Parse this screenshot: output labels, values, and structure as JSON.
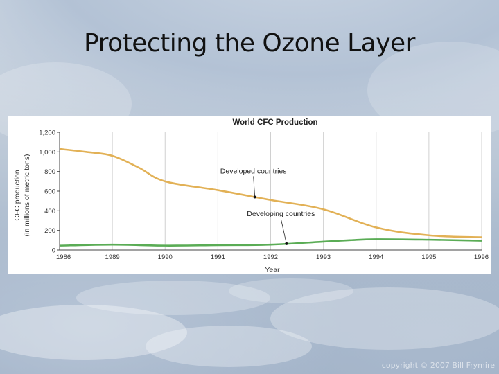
{
  "slide": {
    "title": "Protecting the Ozone Layer",
    "copyright": "copyright © 2007 Bill Frymire"
  },
  "colors": {
    "developed": "#e2b156",
    "developing": "#5aac55",
    "grid": "#d0d0d0",
    "axis": "#444444"
  },
  "chart_data": {
    "type": "line",
    "title": "World CFC Production",
    "xlabel": "Year",
    "ylabel": [
      "CFC production",
      "(in millions of metric tons)"
    ],
    "categories": [
      "1986",
      "1989",
      "1990",
      "1991",
      "1992",
      "1993",
      "1994",
      "1995",
      "1996"
    ],
    "ylim": [
      0,
      1200
    ],
    "yticks": [
      0,
      200,
      400,
      600,
      800,
      1000,
      1200
    ],
    "ytick_labels": [
      "0",
      "200",
      "400",
      "600",
      "800",
      "1,000",
      "1,200"
    ],
    "grid": "vertical",
    "series": [
      {
        "name": "Developed countries",
        "color": "#e2b156",
        "points": [
          [
            0,
            1030
          ],
          [
            0.5,
            1000
          ],
          [
            1,
            960
          ],
          [
            1.5,
            840
          ],
          [
            2,
            700
          ],
          [
            3,
            610
          ],
          [
            4,
            510
          ],
          [
            5,
            415
          ],
          [
            6,
            230
          ],
          [
            7,
            150
          ],
          [
            8,
            130
          ]
        ],
        "annotation_x": 3.7
      },
      {
        "name": "Developing countries",
        "color": "#5aac55",
        "points": [
          [
            0,
            45
          ],
          [
            1,
            55
          ],
          [
            2,
            45
          ],
          [
            3,
            50
          ],
          [
            4,
            55
          ],
          [
            5,
            85
          ],
          [
            5.5,
            100
          ],
          [
            6,
            110
          ],
          [
            7,
            105
          ],
          [
            8,
            95
          ]
        ],
        "annotation_x": 4.3
      }
    ]
  }
}
